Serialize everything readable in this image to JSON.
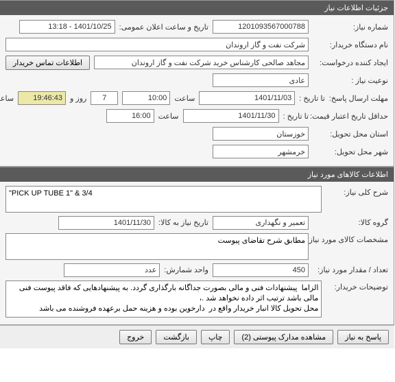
{
  "section1": {
    "title": "جزئیات اطلاعات نیاز",
    "needNumber": {
      "label": "شماره نیاز:",
      "value": "1201093567000788"
    },
    "publicAnnounce": {
      "label": "تاریخ و ساعت اعلان عمومی:",
      "value": "1401/10/25 - 13:18"
    },
    "buyerOrg": {
      "label": "نام دستگاه خریدار:",
      "value": "شرکت نفت و گاز اروندان"
    },
    "requester": {
      "label": "ایجاد کننده درخواست:",
      "value": "مجاهد صالحی کارشناس خرید شرکت نفت و گاز اروندان"
    },
    "contactBtn": "اطلاعات تماس خریدار",
    "needType": {
      "label": "نوعیت نیاز :",
      "value": "عادی"
    },
    "replyDeadline": {
      "label": "مهلت ارسال پاسخ:",
      "toDateLabel": "تا تاریخ :",
      "date": "1401/11/03",
      "timeLabel": "ساعت",
      "time": "10:00",
      "daysCount": "7",
      "daysLabel": "روز و",
      "remain": "19:46:43",
      "remainLabel": "ساعت باقی مانده"
    },
    "priceValidity": {
      "label": "حداقل تاریخ اعتبار قیمت:",
      "toDateLabel": "تا تاریخ :",
      "date": "1401/11/30",
      "timeLabel": "ساعت",
      "time": "16:00"
    },
    "deliveryProvince": {
      "label": "استان محل تحویل:",
      "value": "خوزستان"
    },
    "deliveryCity": {
      "label": "شهر محل تحویل:",
      "value": "خرمشهر"
    }
  },
  "section2": {
    "title": "اطلاعات کالاهای مورد نیاز",
    "generalDesc": {
      "label": "شرح کلی نیاز:",
      "value": "\"PICK UP TUBE 1\" & 3/4"
    },
    "goodsGroup": {
      "label": "گروه کالا:",
      "value": "تعمیر و نگهداری"
    },
    "needDateToGoods": {
      "label": "تاریخ نیاز به کالا:",
      "value": "1401/11/30"
    },
    "goodsSpec": {
      "label": "مشخصات کالای مورد نیاز:",
      "value": "مطابق شرح تقاضای پیوست"
    },
    "quantity": {
      "label": "تعداد / مقدار مورد نیاز:",
      "value": "450"
    },
    "countUnit": {
      "label": "واحد شمارش:",
      "value": "عدد"
    },
    "buyerNotes": {
      "label": "توضیحات خریدار:",
      "value": "الزاما  پیشنهادات فنی و مالی بصورت جداگانه بارگذاری گردد. به پیشنهادهایی که فاقد پیوست فنی مالی باشد ترتیب اثر داده نخواهد شد .،\nمحل تحویل کالا انبار خریدار واقع در  دارخوین بوده و هزینه حمل برعهده فروشنده می باشد"
    }
  },
  "buttons": {
    "reply": "پاسخ به نیاز",
    "viewAttach": "مشاهده مدارک پیوستی (2)",
    "print": "چاپ",
    "back": "بازگشت",
    "exit": "خروج"
  }
}
